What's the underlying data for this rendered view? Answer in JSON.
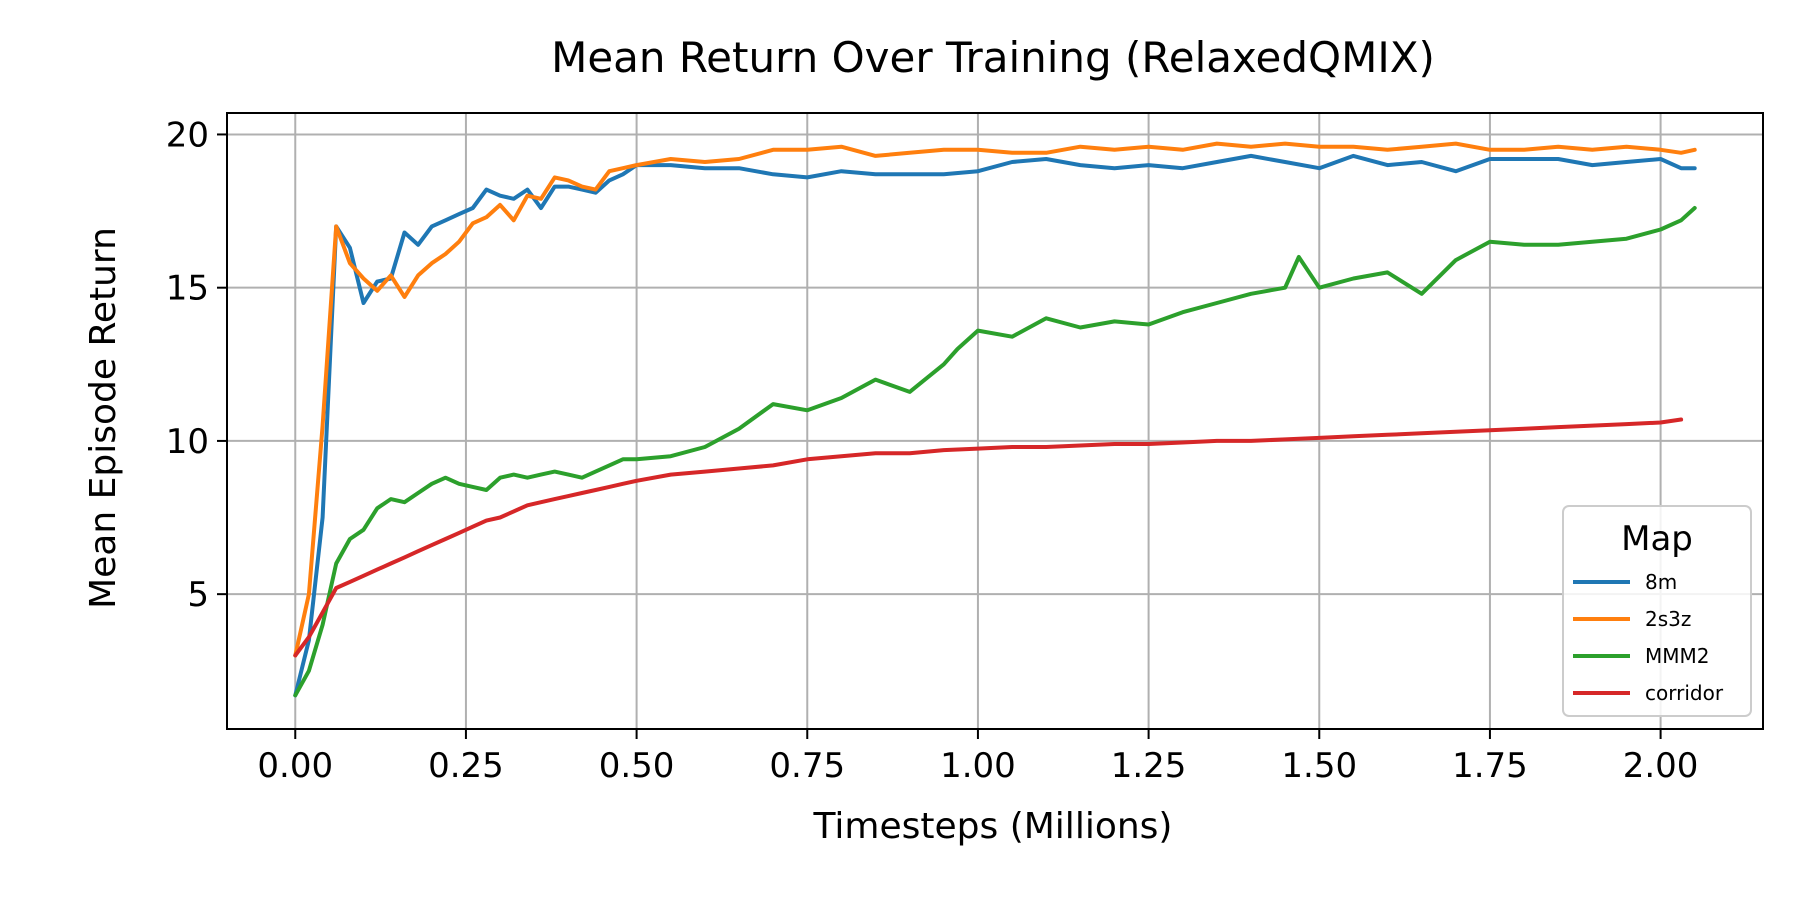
{
  "chart_data": {
    "type": "line",
    "title": "Mean Return Over Training (RelaxedQMIX)",
    "xlabel": "Timesteps (Millions)",
    "ylabel": "Mean Episode Return",
    "xlim": [
      -0.1,
      2.15
    ],
    "ylim": [
      0.6,
      20.7
    ],
    "xticks": [
      0.0,
      0.25,
      0.5,
      0.75,
      1.0,
      1.25,
      1.5,
      1.75,
      2.0
    ],
    "xtick_labels": [
      "0.00",
      "0.25",
      "0.50",
      "0.75",
      "1.00",
      "1.25",
      "1.50",
      "1.75",
      "2.00"
    ],
    "yticks": [
      5,
      10,
      15,
      20
    ],
    "ytick_labels": [
      "5",
      "10",
      "15",
      "20"
    ],
    "grid": true,
    "legend": {
      "title": "Map",
      "position": "lower-right"
    },
    "series": [
      {
        "name": "8m",
        "color": "#1f77b4",
        "x": [
          0.0,
          0.02,
          0.04,
          0.06,
          0.08,
          0.1,
          0.12,
          0.14,
          0.16,
          0.18,
          0.2,
          0.22,
          0.24,
          0.26,
          0.28,
          0.3,
          0.32,
          0.34,
          0.36,
          0.38,
          0.4,
          0.42,
          0.44,
          0.46,
          0.48,
          0.5,
          0.55,
          0.6,
          0.65,
          0.7,
          0.75,
          0.8,
          0.85,
          0.9,
          0.95,
          1.0,
          1.05,
          1.1,
          1.15,
          1.2,
          1.25,
          1.3,
          1.35,
          1.4,
          1.45,
          1.5,
          1.55,
          1.6,
          1.65,
          1.7,
          1.75,
          1.8,
          1.85,
          1.9,
          1.95,
          2.0,
          2.03,
          2.05
        ],
        "y": [
          1.7,
          3.5,
          7.5,
          17.0,
          16.3,
          14.5,
          15.2,
          15.3,
          16.8,
          16.4,
          17.0,
          17.2,
          17.4,
          17.6,
          18.2,
          18.0,
          17.9,
          18.2,
          17.6,
          18.3,
          18.3,
          18.2,
          18.1,
          18.5,
          18.7,
          19.0,
          19.0,
          18.9,
          18.9,
          18.7,
          18.6,
          18.8,
          18.7,
          18.7,
          18.7,
          18.8,
          19.1,
          19.2,
          19.0,
          18.9,
          19.0,
          18.9,
          19.1,
          19.3,
          19.1,
          18.9,
          19.3,
          19.0,
          19.1,
          18.8,
          19.2,
          19.2,
          19.2,
          19.0,
          19.1,
          19.2,
          18.9,
          18.9
        ]
      },
      {
        "name": "2s3z",
        "color": "#ff7f0e",
        "x": [
          0.0,
          0.02,
          0.04,
          0.06,
          0.08,
          0.1,
          0.12,
          0.14,
          0.16,
          0.18,
          0.2,
          0.22,
          0.24,
          0.26,
          0.28,
          0.3,
          0.32,
          0.34,
          0.36,
          0.38,
          0.4,
          0.42,
          0.44,
          0.46,
          0.48,
          0.5,
          0.55,
          0.6,
          0.65,
          0.7,
          0.75,
          0.8,
          0.85,
          0.9,
          0.95,
          1.0,
          1.05,
          1.1,
          1.15,
          1.2,
          1.25,
          1.3,
          1.35,
          1.4,
          1.45,
          1.5,
          1.55,
          1.6,
          1.65,
          1.7,
          1.75,
          1.8,
          1.85,
          1.9,
          1.95,
          2.0,
          2.03,
          2.05
        ],
        "y": [
          3.0,
          5.0,
          10.5,
          17.0,
          15.8,
          15.3,
          14.9,
          15.4,
          14.7,
          15.4,
          15.8,
          16.1,
          16.5,
          17.1,
          17.3,
          17.7,
          17.2,
          18.0,
          17.9,
          18.6,
          18.5,
          18.3,
          18.2,
          18.8,
          18.9,
          19.0,
          19.2,
          19.1,
          19.2,
          19.5,
          19.5,
          19.6,
          19.3,
          19.4,
          19.5,
          19.5,
          19.4,
          19.4,
          19.6,
          19.5,
          19.6,
          19.5,
          19.7,
          19.6,
          19.7,
          19.6,
          19.6,
          19.5,
          19.6,
          19.7,
          19.5,
          19.5,
          19.6,
          19.5,
          19.6,
          19.5,
          19.4,
          19.5
        ]
      },
      {
        "name": "MMM2",
        "color": "#2ca02c",
        "x": [
          0.0,
          0.02,
          0.04,
          0.06,
          0.08,
          0.1,
          0.12,
          0.14,
          0.16,
          0.18,
          0.2,
          0.22,
          0.24,
          0.26,
          0.28,
          0.3,
          0.32,
          0.34,
          0.36,
          0.38,
          0.4,
          0.42,
          0.44,
          0.46,
          0.48,
          0.5,
          0.55,
          0.6,
          0.65,
          0.7,
          0.75,
          0.8,
          0.85,
          0.9,
          0.95,
          0.97,
          1.0,
          1.05,
          1.1,
          1.15,
          1.2,
          1.25,
          1.3,
          1.35,
          1.4,
          1.45,
          1.47,
          1.5,
          1.55,
          1.6,
          1.65,
          1.7,
          1.75,
          1.8,
          1.85,
          1.9,
          1.95,
          2.0,
          2.03,
          2.05
        ],
        "y": [
          1.7,
          2.5,
          4.0,
          6.0,
          6.8,
          7.1,
          7.8,
          8.1,
          8.0,
          8.3,
          8.6,
          8.8,
          8.6,
          8.5,
          8.4,
          8.8,
          8.9,
          8.8,
          8.9,
          9.0,
          8.9,
          8.8,
          9.0,
          9.2,
          9.4,
          9.4,
          9.5,
          9.8,
          10.4,
          11.2,
          11.0,
          11.4,
          12.0,
          11.6,
          12.5,
          13.0,
          13.6,
          13.4,
          14.0,
          13.7,
          13.9,
          13.8,
          14.2,
          14.5,
          14.8,
          15.0,
          16.0,
          15.0,
          15.3,
          15.5,
          14.8,
          15.9,
          16.5,
          16.4,
          16.4,
          16.5,
          16.6,
          16.9,
          17.2,
          17.6
        ]
      },
      {
        "name": "corridor",
        "color": "#d62728",
        "x": [
          0.0,
          0.02,
          0.04,
          0.06,
          0.08,
          0.1,
          0.12,
          0.14,
          0.16,
          0.18,
          0.2,
          0.22,
          0.24,
          0.26,
          0.28,
          0.3,
          0.32,
          0.34,
          0.36,
          0.38,
          0.4,
          0.42,
          0.44,
          0.46,
          0.48,
          0.5,
          0.55,
          0.6,
          0.65,
          0.7,
          0.75,
          0.8,
          0.85,
          0.9,
          0.95,
          1.0,
          1.05,
          1.1,
          1.15,
          1.2,
          1.25,
          1.3,
          1.35,
          1.4,
          1.45,
          1.5,
          1.55,
          1.6,
          1.65,
          1.7,
          1.75,
          1.8,
          1.85,
          1.9,
          1.95,
          2.0,
          2.03
        ],
        "y": [
          3.0,
          3.6,
          4.4,
          5.2,
          5.4,
          5.6,
          5.8,
          6.0,
          6.2,
          6.4,
          6.6,
          6.8,
          7.0,
          7.2,
          7.4,
          7.5,
          7.7,
          7.9,
          8.0,
          8.1,
          8.2,
          8.3,
          8.4,
          8.5,
          8.6,
          8.7,
          8.9,
          9.0,
          9.1,
          9.2,
          9.4,
          9.5,
          9.6,
          9.6,
          9.7,
          9.75,
          9.8,
          9.8,
          9.85,
          9.9,
          9.9,
          9.95,
          10.0,
          10.0,
          10.05,
          10.1,
          10.15,
          10.2,
          10.25,
          10.3,
          10.35,
          10.4,
          10.45,
          10.5,
          10.55,
          10.6,
          10.7
        ]
      }
    ]
  }
}
